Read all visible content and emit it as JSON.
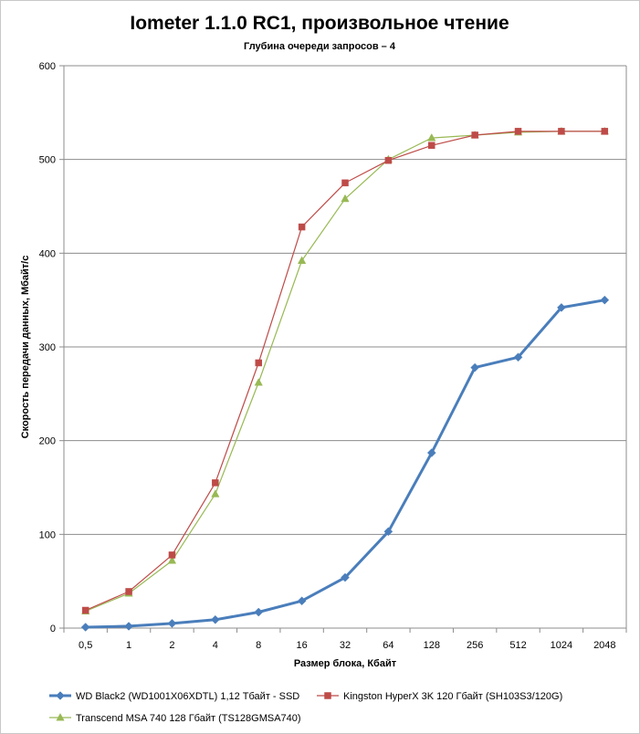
{
  "chart_data": {
    "type": "line",
    "title": "Iometer 1.1.0 RC1, произвольное чтение",
    "subtitle": "Глубина очереди запросов – 4",
    "xlabel": "Размер блока, Кбайт",
    "ylabel": "Скорость передачи данных, Мбайт/с",
    "categories": [
      "0,5",
      "1",
      "2",
      "4",
      "8",
      "16",
      "32",
      "64",
      "128",
      "256",
      "512",
      "1024",
      "2048"
    ],
    "ylim": [
      0,
      600
    ],
    "yticks": [
      0,
      100,
      200,
      300,
      400,
      500,
      600
    ],
    "grid": "horizontal",
    "legend_position": "bottom",
    "series": [
      {
        "name": "WD Black2 (WD1001X06XDTL) 1,12 Тбайт - SSD",
        "color": "#4a7ebb",
        "marker": "diamond",
        "values": [
          1,
          2,
          5,
          9,
          17,
          29,
          54,
          103,
          187,
          278,
          289,
          342,
          350
        ]
      },
      {
        "name": "Kingston HyperX 3K 120 Гбайт (SH103S3/120G)",
        "color": "#be4b48",
        "marker": "square",
        "values": [
          19,
          39,
          78,
          155,
          283,
          428,
          475,
          499,
          515,
          526,
          530,
          530,
          530
        ]
      },
      {
        "name": "Transcend MSA 740 128 Гбайт (TS128GMSA740)",
        "color": "#98b954",
        "marker": "triangle",
        "values": [
          18,
          37,
          72,
          143,
          262,
          392,
          458,
          500,
          523,
          526,
          529,
          530,
          530
        ]
      }
    ]
  }
}
